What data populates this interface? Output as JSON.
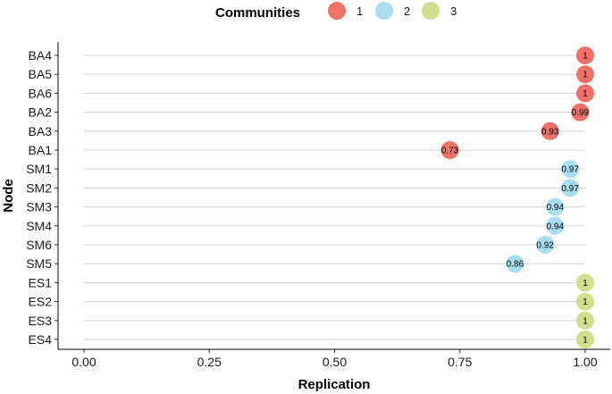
{
  "chart_data": {
    "type": "scatter",
    "xlabel": "Replication",
    "ylabel": "Node",
    "xlim": [
      0,
      1
    ],
    "x_ticks": [
      "0.00",
      "0.25",
      "0.50",
      "0.75",
      "1.00"
    ],
    "x_tick_values": [
      0,
      0.25,
      0.5,
      0.75,
      1.0
    ],
    "grid": "horizontal",
    "legend": {
      "title": "Communities",
      "placement": "top",
      "entries": [
        {
          "label": "1",
          "color": "#F07167"
        },
        {
          "label": "2",
          "color": "#A9DDF0"
        },
        {
          "label": "3",
          "color": "#D2DE8E"
        }
      ]
    },
    "points": [
      {
        "node": "BA4",
        "value": 1.0,
        "label": "1",
        "community": 0
      },
      {
        "node": "BA5",
        "value": 1.0,
        "label": "1",
        "community": 0
      },
      {
        "node": "BA6",
        "value": 1.0,
        "label": "1",
        "community": 0
      },
      {
        "node": "BA2",
        "value": 0.99,
        "label": "0.99",
        "community": 0
      },
      {
        "node": "BA3",
        "value": 0.93,
        "label": "0.93",
        "community": 0
      },
      {
        "node": "BA1",
        "value": 0.73,
        "label": "0.73",
        "community": 0
      },
      {
        "node": "SM1",
        "value": 0.97,
        "label": "0.97",
        "community": 1
      },
      {
        "node": "SM2",
        "value": 0.97,
        "label": "0.97",
        "community": 1
      },
      {
        "node": "SM3",
        "value": 0.94,
        "label": "0.94",
        "community": 1
      },
      {
        "node": "SM4",
        "value": 0.94,
        "label": "0.94",
        "community": 1
      },
      {
        "node": "SM6",
        "value": 0.92,
        "label": "0.92",
        "community": 1
      },
      {
        "node": "SM5",
        "value": 0.86,
        "label": "0.86",
        "community": 1
      },
      {
        "node": "ES1",
        "value": 1.0,
        "label": "1",
        "community": 2
      },
      {
        "node": "ES2",
        "value": 1.0,
        "label": "1",
        "community": 2
      },
      {
        "node": "ES3",
        "value": 1.0,
        "label": "1",
        "community": 2
      },
      {
        "node": "ES4",
        "value": 1.0,
        "label": "1",
        "community": 2
      }
    ]
  }
}
